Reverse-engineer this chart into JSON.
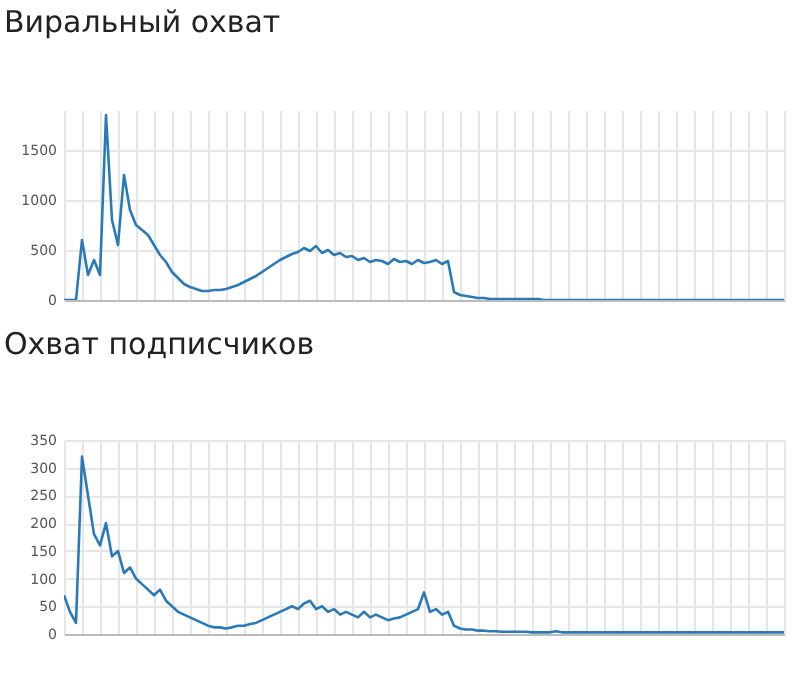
{
  "chart_data": [
    {
      "type": "line",
      "title": "Виральный охват",
      "tick_labels": "y",
      "grid": true,
      "ylim": [
        0,
        1900
      ],
      "yticks": [
        0,
        500,
        1000,
        1500
      ],
      "categories": [
        null,
        null,
        null,
        null,
        null,
        null,
        null,
        null,
        null,
        null,
        null,
        null,
        null,
        null,
        null,
        null,
        null,
        null,
        null,
        null,
        null,
        null,
        null,
        null,
        null,
        null,
        null,
        null,
        null,
        null,
        null,
        null,
        null,
        null,
        null,
        null,
        null,
        null,
        null,
        null,
        null,
        null,
        null,
        null,
        null,
        null,
        null,
        null,
        null,
        null,
        null,
        null,
        null,
        null,
        null,
        null,
        null,
        null,
        null,
        null,
        null,
        null,
        null,
        null,
        null,
        null,
        null,
        null,
        null,
        null,
        null,
        null,
        null,
        null,
        null,
        null,
        null,
        null,
        null,
        null,
        null,
        null,
        null,
        null,
        null,
        null,
        null,
        null,
        null,
        null,
        null,
        null,
        null,
        null,
        null,
        null,
        null,
        null,
        null,
        null,
        null,
        null,
        null,
        null,
        null,
        null,
        null,
        null,
        null,
        null,
        null,
        null,
        null,
        null,
        null,
        null,
        null,
        null,
        null,
        null,
        null
      ],
      "series": [
        {
          "color": "#2a7ab8",
          "values": [
            0,
            0,
            0,
            600,
            250,
            400,
            250,
            1850,
            800,
            550,
            1250,
            900,
            750,
            700,
            650,
            550,
            450,
            380,
            280,
            220,
            160,
            130,
            110,
            90,
            90,
            100,
            100,
            110,
            130,
            150,
            180,
            210,
            240,
            280,
            320,
            360,
            400,
            430,
            460,
            480,
            520,
            490,
            540,
            470,
            500,
            450,
            470,
            430,
            440,
            400,
            420,
            380,
            400,
            390,
            360,
            410,
            380,
            390,
            360,
            400,
            370,
            380,
            400,
            360,
            390,
            80,
            50,
            40,
            30,
            20,
            20,
            10,
            10,
            10,
            10,
            10,
            10,
            10,
            10,
            10,
            0,
            0,
            0,
            0,
            0,
            0,
            0,
            0,
            0,
            0,
            0,
            0,
            0,
            0,
            0,
            0,
            0,
            0,
            0,
            0,
            0,
            0,
            0,
            0,
            0,
            0,
            0,
            0,
            0,
            0,
            0,
            0,
            0,
            0,
            0,
            0,
            0,
            0,
            0,
            0,
            0
          ]
        }
      ]
    },
    {
      "type": "line",
      "title": "Охват подписчиков",
      "tick_labels": "y",
      "grid": true,
      "ylim": [
        0,
        350
      ],
      "yticks": [
        0,
        50,
        100,
        150,
        200,
        250,
        300,
        350
      ],
      "categories": [
        null,
        null,
        null,
        null,
        null,
        null,
        null,
        null,
        null,
        null,
        null,
        null,
        null,
        null,
        null,
        null,
        null,
        null,
        null,
        null,
        null,
        null,
        null,
        null,
        null,
        null,
        null,
        null,
        null,
        null,
        null,
        null,
        null,
        null,
        null,
        null,
        null,
        null,
        null,
        null,
        null,
        null,
        null,
        null,
        null,
        null,
        null,
        null,
        null,
        null,
        null,
        null,
        null,
        null,
        null,
        null,
        null,
        null,
        null,
        null,
        null,
        null,
        null,
        null,
        null,
        null,
        null,
        null,
        null,
        null,
        null,
        null,
        null,
        null,
        null,
        null,
        null,
        null,
        null,
        null,
        null,
        null,
        null,
        null,
        null,
        null,
        null,
        null,
        null,
        null,
        null,
        null,
        null,
        null,
        null,
        null,
        null,
        null,
        null,
        null,
        null,
        null,
        null,
        null,
        null,
        null,
        null,
        null,
        null,
        null,
        null,
        null,
        null,
        null,
        null,
        null,
        null,
        null,
        null,
        null,
        null
      ],
      "series": [
        {
          "color": "#2a7ab8",
          "values": [
            70,
            40,
            20,
            320,
            250,
            180,
            160,
            200,
            140,
            150,
            110,
            120,
            100,
            90,
            80,
            70,
            80,
            60,
            50,
            40,
            35,
            30,
            25,
            20,
            15,
            12,
            12,
            10,
            12,
            15,
            15,
            18,
            20,
            25,
            30,
            35,
            40,
            45,
            50,
            45,
            55,
            60,
            45,
            50,
            40,
            45,
            35,
            40,
            35,
            30,
            40,
            30,
            35,
            30,
            25,
            28,
            30,
            35,
            40,
            45,
            75,
            40,
            45,
            35,
            40,
            15,
            10,
            8,
            8,
            6,
            6,
            5,
            5,
            4,
            4,
            4,
            4,
            4,
            3,
            3,
            3,
            3,
            5,
            3,
            3,
            3,
            3,
            3,
            3,
            3,
            3,
            3,
            3,
            3,
            3,
            3,
            3,
            3,
            3,
            3,
            3,
            3,
            3,
            3,
            3,
            3,
            3,
            3,
            3,
            3,
            3,
            3,
            3,
            3,
            3,
            3,
            3,
            3,
            3,
            3,
            3
          ]
        }
      ]
    }
  ]
}
